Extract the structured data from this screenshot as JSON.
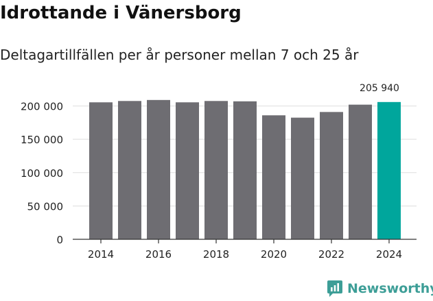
{
  "header": {
    "title": "Idrottande i Vänersborg",
    "subtitle": "Deltagartillfällen per år personer mellan 7 och 25 år"
  },
  "branding": {
    "name": "Newsworthy",
    "color": "#3d9e97"
  },
  "colors": {
    "bar": "#6e6d72",
    "highlight": "#00a69c",
    "grid": "#dddddd",
    "axis": "#333333"
  },
  "chart_data": {
    "type": "bar",
    "title": "Idrottande i Vänersborg",
    "subtitle": "Deltagartillfällen per år personer mellan 7 och 25 år",
    "xlabel": "",
    "ylabel": "",
    "categories": [
      "2014",
      "2015",
      "2016",
      "2017",
      "2018",
      "2019",
      "2020",
      "2021",
      "2022",
      "2023",
      "2024"
    ],
    "values": [
      205500,
      207500,
      209000,
      205500,
      207500,
      207000,
      186000,
      182500,
      191000,
      202000,
      205940
    ],
    "ylim": [
      0,
      215000
    ],
    "yticks": [
      0,
      50000,
      100000,
      150000,
      200000
    ],
    "ytick_labels": [
      "0",
      "50 000",
      "100 000",
      "150 000",
      "200 000"
    ],
    "xtick_labels": [
      "2014",
      "2016",
      "2018",
      "2020",
      "2022",
      "2024"
    ],
    "highlight_index": 10,
    "annotation": {
      "category": "2024",
      "text": "205 940"
    },
    "grid": true
  }
}
